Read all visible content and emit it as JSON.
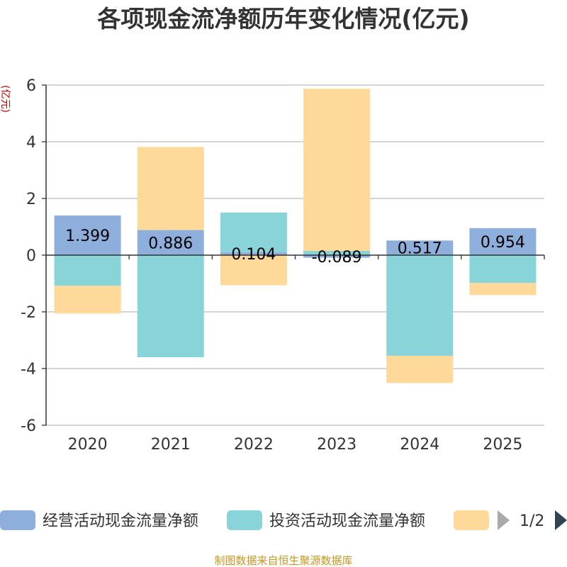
{
  "chart_data": {
    "type": "bar",
    "stacked": true,
    "title": "各项现金流净额历年变化情况(亿元)",
    "ylabel": "(亿元)",
    "categories": [
      "2020",
      "2021",
      "2022",
      "2023",
      "2024",
      "2025"
    ],
    "y_ticks": [
      "6",
      "4",
      "2",
      "0",
      "-2",
      "-4",
      "-6"
    ],
    "ylim": [
      -6,
      6
    ],
    "grid": true,
    "series": [
      {
        "name": "经营活动现金流量净额",
        "color": "#8eaedb",
        "values": [
          1.399,
          0.886,
          0.104,
          -0.089,
          0.517,
          0.954
        ],
        "labels": [
          "1.399",
          "0.886",
          "0.104",
          "-0.089",
          "0.517",
          "0.954"
        ]
      },
      {
        "name": "投资活动现金流量净额",
        "color": "#88d4d8",
        "values": [
          -1.08,
          -3.6,
          1.4,
          0.15,
          -3.55,
          -0.98
        ],
        "labels": [
          "",
          "",
          "",
          "",
          "",
          ""
        ]
      },
      {
        "name": "",
        "color": "#fed99a",
        "values": [
          -0.98,
          2.93,
          -1.06,
          5.72,
          -0.96,
          -0.43
        ],
        "labels": [
          "",
          "",
          "",
          "",
          "",
          ""
        ]
      }
    ],
    "legend": {
      "position": "bottom",
      "page": "1/2"
    }
  },
  "footer": {
    "source": "制图数据来自恒生聚源数据库"
  }
}
